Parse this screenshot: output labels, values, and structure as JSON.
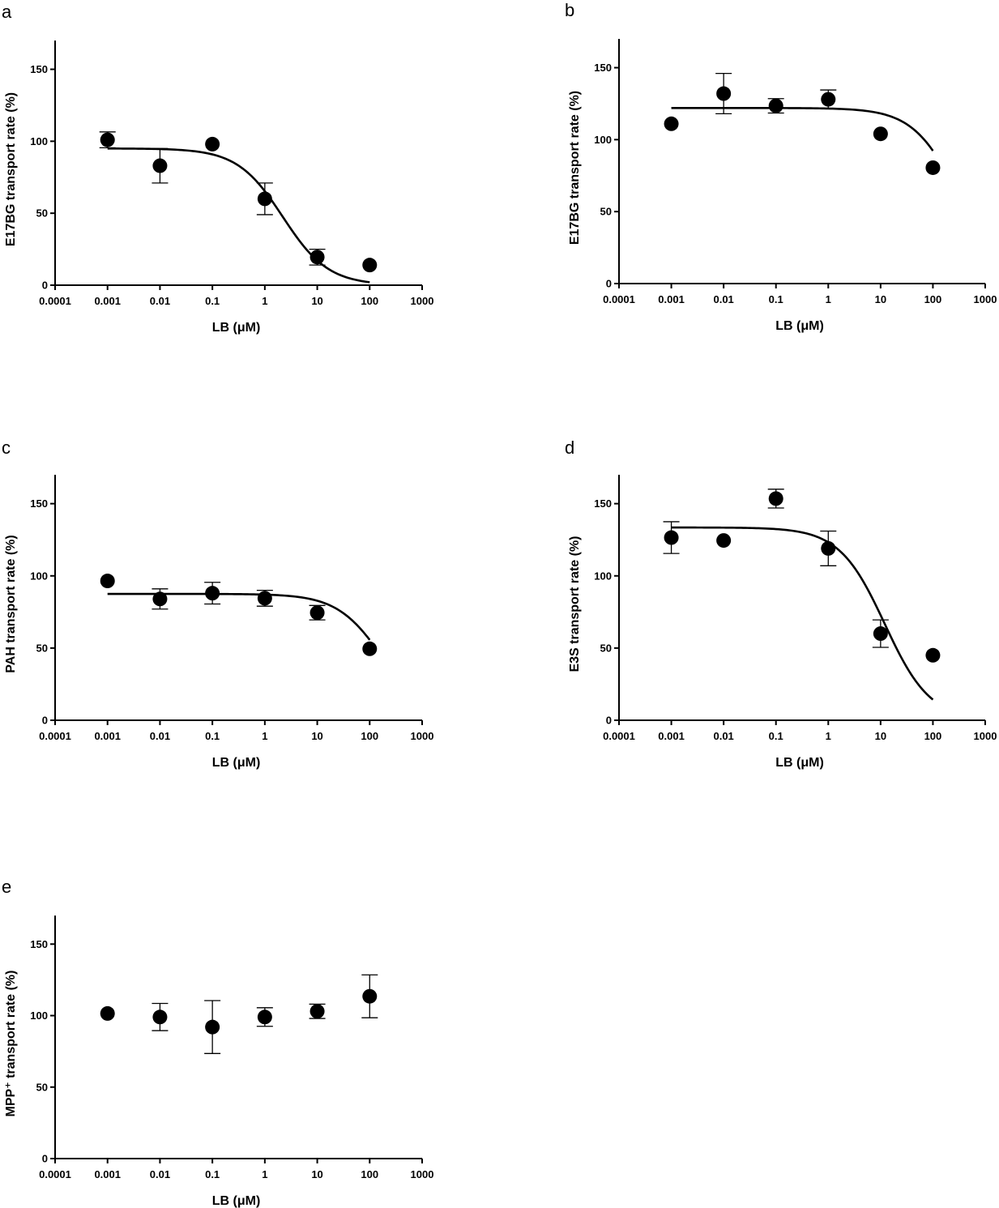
{
  "chart_data": [
    {
      "type": "scatter",
      "panel": "a",
      "xlabel": "LB (μM)",
      "ylabel": "E17BG transport rate (%)",
      "xscale": "log",
      "xlim": [
        0.0001,
        1000
      ],
      "ylim": [
        0,
        170
      ],
      "xticks": [
        "0.0001",
        "0.001",
        "0.01",
        "0.1",
        "1",
        "10",
        "100",
        "1000"
      ],
      "yticks": [
        "0",
        "50",
        "100",
        "150"
      ],
      "grid": false,
      "fit": {
        "top": 95,
        "bottom": 0,
        "ic50": 2.2,
        "hill": 1,
        "x_range": [
          0.001,
          100
        ]
      },
      "points": [
        {
          "x": 0.001,
          "y": 101,
          "err": 5.5
        },
        {
          "x": 0.01,
          "y": 83,
          "err": 12
        },
        {
          "x": 0.1,
          "y": 98,
          "err": 0
        },
        {
          "x": 1,
          "y": 60,
          "err": 11
        },
        {
          "x": 10,
          "y": 19.5,
          "err": 5.5
        },
        {
          "x": 100,
          "y": 14,
          "err": 0
        }
      ]
    },
    {
      "type": "scatter",
      "panel": "b",
      "xlabel": "LB (μM)",
      "ylabel": "E17BG transport rate (%)",
      "xscale": "log",
      "xlim": [
        0.0001,
        1000
      ],
      "ylim": [
        0,
        170
      ],
      "xticks": [
        "0.0001",
        "0.001",
        "0.01",
        "0.1",
        "1",
        "10",
        "100",
        "1000"
      ],
      "yticks": [
        "0",
        "50",
        "100",
        "150"
      ],
      "grid": false,
      "fit": {
        "top": 122,
        "bottom": 0,
        "ic50": 310,
        "hill": 1,
        "x_range": [
          0.001,
          100
        ]
      },
      "points": [
        {
          "x": 0.001,
          "y": 111,
          "err": 0
        },
        {
          "x": 0.01,
          "y": 132,
          "err": 14
        },
        {
          "x": 0.1,
          "y": 123.5,
          "err": 5
        },
        {
          "x": 1,
          "y": 128,
          "err": 6.5
        },
        {
          "x": 10,
          "y": 104,
          "err": 0
        },
        {
          "x": 100,
          "y": 80.5,
          "err": 0
        }
      ]
    },
    {
      "type": "scatter",
      "panel": "c",
      "xlabel": "LB (μM)",
      "ylabel": "PAH transport rate (%)",
      "xscale": "log",
      "xlim": [
        0.0001,
        1000
      ],
      "ylim": [
        0,
        170
      ],
      "xticks": [
        "0.0001",
        "0.001",
        "0.01",
        "0.1",
        "1",
        "10",
        "100",
        "1000"
      ],
      "yticks": [
        "0",
        "50",
        "100",
        "150"
      ],
      "grid": false,
      "fit": {
        "top": 87.5,
        "bottom": 0,
        "ic50": 175,
        "hill": 1,
        "x_range": [
          0.001,
          100
        ]
      },
      "points": [
        {
          "x": 0.001,
          "y": 96.5,
          "err": 0
        },
        {
          "x": 0.01,
          "y": 84,
          "err": 7
        },
        {
          "x": 0.1,
          "y": 88,
          "err": 7.5
        },
        {
          "x": 1,
          "y": 84.5,
          "err": 5.5
        },
        {
          "x": 10,
          "y": 74.5,
          "err": 5
        },
        {
          "x": 100,
          "y": 49.5,
          "err": 0
        }
      ]
    },
    {
      "type": "scatter",
      "panel": "d",
      "xlabel": "LB (μM)",
      "ylabel": "E3S transport rate (%)",
      "xscale": "log",
      "xlim": [
        0.0001,
        1000
      ],
      "ylim": [
        0,
        170
      ],
      "xticks": [
        "0.0001",
        "0.001",
        "0.01",
        "0.1",
        "1",
        "10",
        "100",
        "1000"
      ],
      "yticks": [
        "0",
        "50",
        "100",
        "150"
      ],
      "grid": false,
      "fit": {
        "top": 133.5,
        "bottom": 0,
        "ic50": 12,
        "hill": 1,
        "x_range": [
          0.001,
          100
        ]
      },
      "points": [
        {
          "x": 0.001,
          "y": 126.5,
          "err": 11
        },
        {
          "x": 0.01,
          "y": 124.5,
          "err": 0
        },
        {
          "x": 0.1,
          "y": 153.5,
          "err": 6.5
        },
        {
          "x": 1,
          "y": 119,
          "err": 12
        },
        {
          "x": 10,
          "y": 60,
          "err": 9.5
        },
        {
          "x": 100,
          "y": 45,
          "err": 0
        }
      ]
    },
    {
      "type": "scatter",
      "panel": "e",
      "xlabel": "LB (μM)",
      "ylabel": "MPP⁺ transport rate (%)",
      "xscale": "log",
      "xlim": [
        0.0001,
        1000
      ],
      "ylim": [
        0,
        170
      ],
      "xticks": [
        "0.0001",
        "0.001",
        "0.01",
        "0.1",
        "1",
        "10",
        "100",
        "1000"
      ],
      "yticks": [
        "0",
        "50",
        "100",
        "150"
      ],
      "grid": false,
      "points": [
        {
          "x": 0.001,
          "y": 101.5,
          "err": 0
        },
        {
          "x": 0.01,
          "y": 99,
          "err": 9.5
        },
        {
          "x": 0.1,
          "y": 92,
          "err": 18.5
        },
        {
          "x": 1,
          "y": 99,
          "err": 6.5
        },
        {
          "x": 10,
          "y": 103,
          "err": 5
        },
        {
          "x": 100,
          "y": 113.5,
          "err": 15
        }
      ]
    }
  ]
}
